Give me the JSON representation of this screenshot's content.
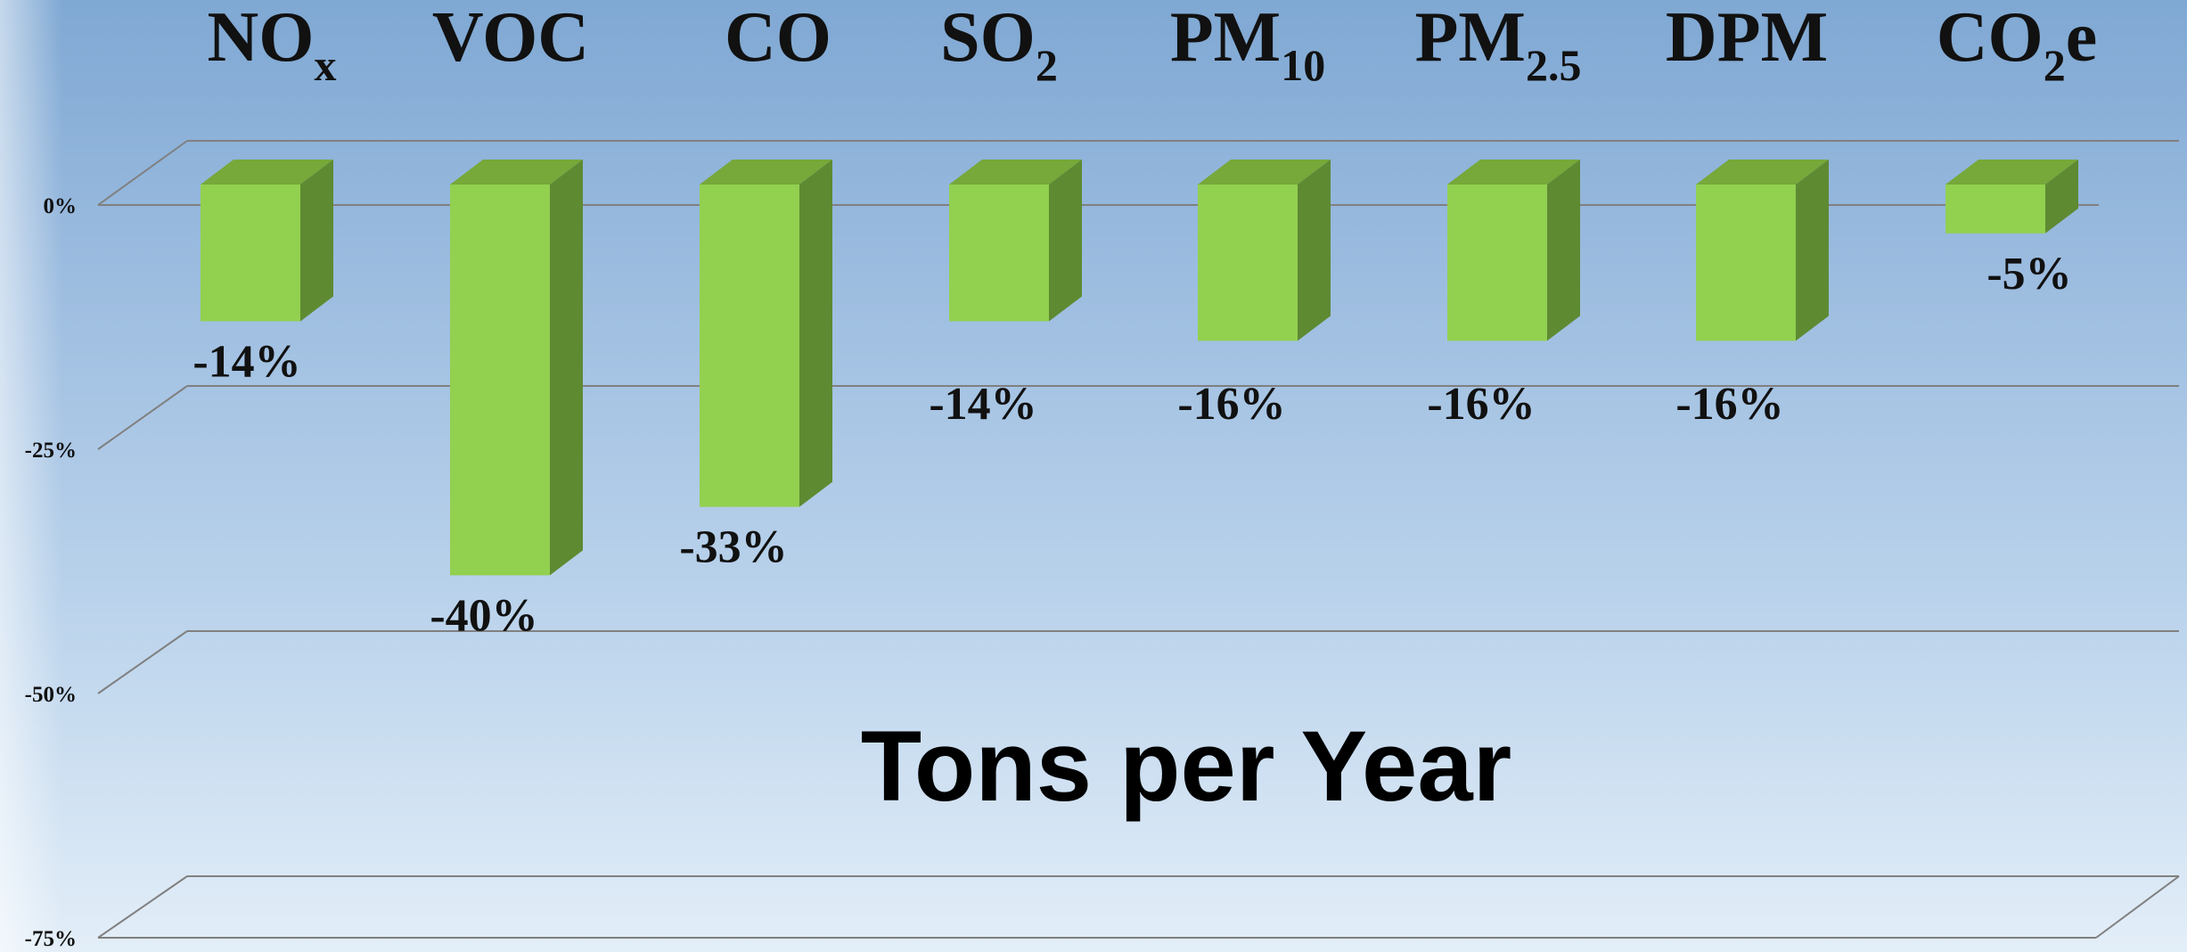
{
  "chart_data": {
    "type": "bar",
    "categories": [
      {
        "base": "NO",
        "sub": "x",
        "suffix": ""
      },
      {
        "base": "VOC",
        "sub": "",
        "suffix": ""
      },
      {
        "base": "CO",
        "sub": "",
        "suffix": ""
      },
      {
        "base": "SO",
        "sub": "2",
        "suffix": ""
      },
      {
        "base": "PM",
        "sub": "10",
        "suffix": ""
      },
      {
        "base": "PM",
        "sub": "2.5",
        "suffix": ""
      },
      {
        "base": "DPM",
        "sub": "",
        "suffix": ""
      },
      {
        "base": "CO",
        "sub": "2",
        "suffix": "e"
      }
    ],
    "values": [
      -14,
      -40,
      -33,
      -14,
      -16,
      -16,
      -16,
      -5
    ],
    "data_labels": [
      "-14%",
      "-40%",
      "-33%",
      "-14%",
      "-16%",
      "-16%",
      "-16%",
      "-5%"
    ],
    "ylim": [
      -75,
      0
    ],
    "y_ticks": [
      {
        "value": 0,
        "label": "0%"
      },
      {
        "value": -25,
        "label": "-25%"
      },
      {
        "value": -50,
        "label": "-50%"
      },
      {
        "value": -75,
        "label": "-75%"
      }
    ],
    "annotation": "Tons per Year",
    "grid": true,
    "style": "3d-column",
    "colors": {
      "bar_front": "#92d050",
      "bar_top": "#76a83a",
      "bar_side": "#5e8a32",
      "gridline": "#808080"
    }
  }
}
